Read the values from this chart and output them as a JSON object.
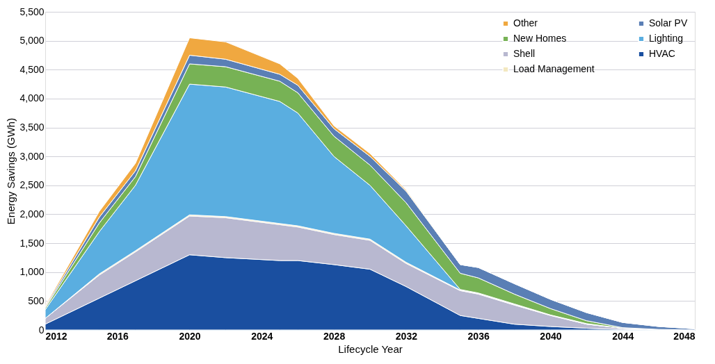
{
  "chart_data": {
    "type": "area",
    "stacked": true,
    "xlabel": "Lifecycle Year",
    "ylabel": "Energy Savings (GWh)",
    "x": [
      2012,
      2015,
      2017,
      2020,
      2022,
      2025,
      2026,
      2028,
      2030,
      2032,
      2035,
      2036,
      2038,
      2040,
      2042,
      2044,
      2046,
      2048
    ],
    "series": [
      {
        "name": "HVAC",
        "color": "#1a4fa0",
        "values": [
          100,
          550,
          850,
          1300,
          1250,
          1200,
          1200,
          1130,
          1050,
          750,
          250,
          200,
          100,
          60,
          30,
          10,
          0,
          0
        ]
      },
      {
        "name": "Shell",
        "color": "#b8b8d0",
        "values": [
          100,
          400,
          500,
          670,
          690,
          620,
          580,
          520,
          500,
          400,
          430,
          420,
          330,
          190,
          70,
          20,
          10,
          0
        ]
      },
      {
        "name": "Load Management",
        "color": "#f3e8c0",
        "values": [
          0,
          20,
          20,
          20,
          20,
          20,
          20,
          20,
          20,
          20,
          10,
          10,
          10,
          10,
          0,
          0,
          0,
          0
        ]
      },
      {
        "name": "Lighting",
        "color": "#5aaee0",
        "values": [
          150,
          730,
          1130,
          2260,
          2240,
          2110,
          1950,
          1330,
          930,
          630,
          10,
          10,
          10,
          0,
          10,
          0,
          0,
          0
        ]
      },
      {
        "name": "New Homes",
        "color": "#77b255",
        "values": [
          30,
          150,
          150,
          350,
          350,
          350,
          350,
          350,
          350,
          400,
          280,
          260,
          170,
          110,
          50,
          10,
          0,
          0
        ]
      },
      {
        "name": "Solar PV",
        "color": "#5a7fb5",
        "values": [
          20,
          100,
          100,
          150,
          130,
          120,
          130,
          130,
          150,
          200,
          150,
          180,
          180,
          160,
          140,
          90,
          50,
          20
        ]
      },
      {
        "name": "Other",
        "color": "#f0a840",
        "values": [
          20,
          100,
          130,
          300,
          300,
          180,
          120,
          50,
          50,
          20,
          0,
          0,
          0,
          0,
          0,
          0,
          0,
          0
        ]
      }
    ],
    "xlim": [
      2012,
      2048
    ],
    "xticks": [
      2012,
      2016,
      2020,
      2024,
      2028,
      2032,
      2036,
      2040,
      2044,
      2048
    ],
    "ylim": [
      0,
      5500
    ],
    "yticks": [
      0,
      500,
      {
        "value": 1000,
        "label": "1,000"
      },
      {
        "value": 1500,
        "label": "1,500"
      },
      {
        "value": 2000,
        "label": "2,000"
      },
      {
        "value": 2500,
        "label": "2,500"
      },
      {
        "value": 3000,
        "label": "3,000"
      },
      {
        "value": 3500,
        "label": "3,500"
      },
      {
        "value": 4000,
        "label": "4,000"
      },
      {
        "value": 4500,
        "label": "4,500"
      },
      {
        "value": 5000,
        "label": "5,000"
      },
      {
        "value": 5500,
        "label": "5,500"
      }
    ],
    "grid": "y",
    "legend": "top right"
  }
}
